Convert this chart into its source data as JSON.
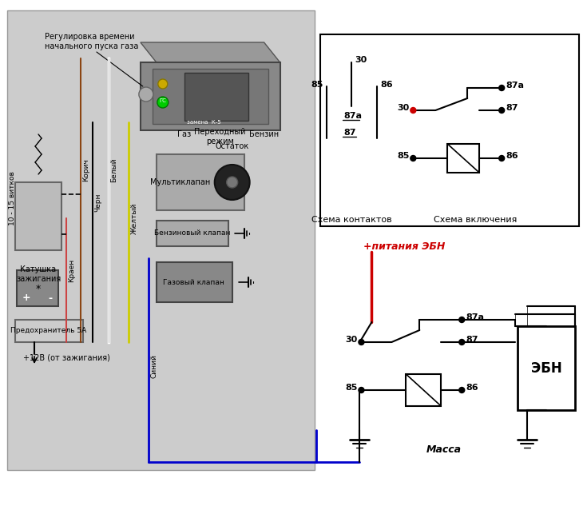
{
  "bg_color": "#ffffff",
  "left_panel_bg": "#cccccc",
  "colors": {
    "red_wire": "#cc0000",
    "blue_wire": "#0000cc",
    "black_wire": "#000000",
    "brown_wire": "#8B4513",
    "yellow_wire": "#cccc00",
    "green_led": "#00cc00",
    "yellow_led": "#ccaa00",
    "device_fill": "#888888",
    "ebn_fill": "#ffffff",
    "pitaniya_color": "#cc0000",
    "schema_border": "#000000",
    "panel_border": "#999999",
    "multiklap_fill": "#aaaaaa",
    "coil_fill": "#bbbbbb",
    "battery_fill": "#888888",
    "predohr_fill": "#cccccc",
    "benzklap_fill": "#aaaaaa",
    "gazklap_fill": "#888888",
    "ecu_fill": "#888888",
    "ecu_front": "#777777",
    "ecu_display": "#555555",
    "ecu_knob": "#aaaaaa"
  },
  "texts": {
    "reg_label": "Регулировка времени\nначального пуска газа",
    "gaz_label": "Газ",
    "perekh_label": "Переходный\nрежим",
    "benzin_label": "Бензин",
    "ostatok_label": "Остаток",
    "multiklap_label": "Мультиклапан",
    "katushka_label": "Катушка\nзажигания",
    "predohr_label": "Предохранитель 5А",
    "plus12v_label": "+12В (от зажигания)",
    "benzklap_label": "Бензиновый клапан",
    "gazklap_label": "Газовый клапан",
    "vitkov_label": "10 - 15 витков",
    "korich_label": "Корич",
    "bely_label": "Белый",
    "chern_label": "Черн",
    "zhelt_label": "Желтый",
    "kraen_label": "Краен",
    "siniy_label": "Синий",
    "schema_kontaktov": "Схема контактов",
    "schema_vklyuch": "Схема включения",
    "pitaniya_ebn": "+питания ЭБН",
    "massa": "Масса",
    "ebn": "ЭБН",
    "gs_label": "ГС",
    "zamena_label": "замена  К-5",
    "star_label": "*"
  }
}
